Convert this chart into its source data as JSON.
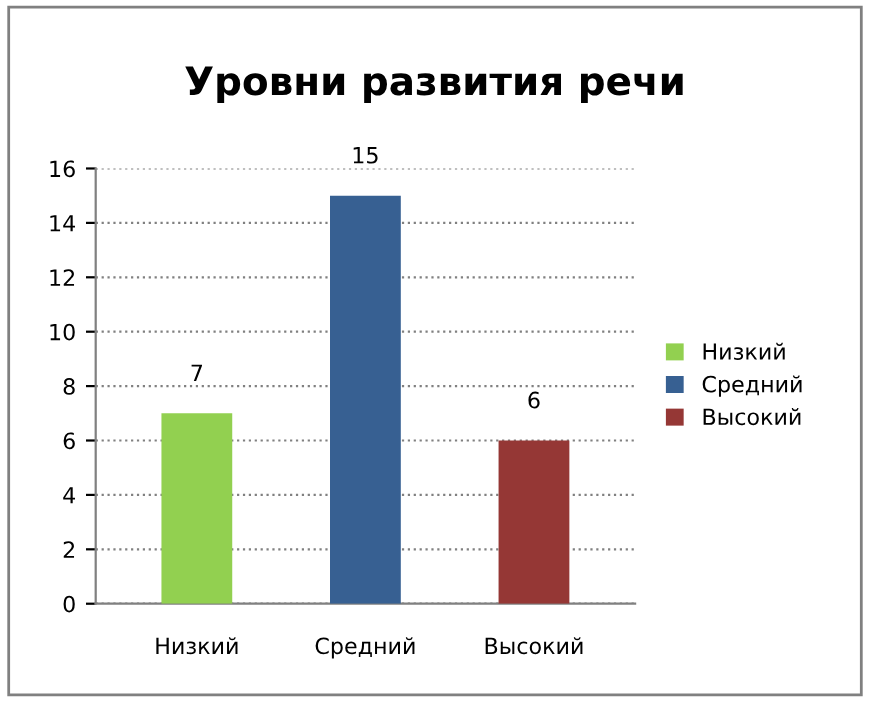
{
  "chart_data": {
    "type": "bar",
    "title": "Уровни развития речи",
    "categories": [
      "Низкий",
      "Средний",
      "Высокий"
    ],
    "series": [
      {
        "name": "Низкий",
        "color": "#92d050",
        "values": [
          7,
          null,
          null
        ]
      },
      {
        "name": "Средний",
        "color": "#376092",
        "values": [
          null,
          15,
          null
        ]
      },
      {
        "name": "Высокий",
        "color": "#953735",
        "values": [
          null,
          null,
          6
        ]
      }
    ],
    "ylim": [
      0,
      16
    ],
    "yticks": [
      0,
      2,
      4,
      6,
      8,
      10,
      12,
      14,
      16
    ],
    "grid": "y",
    "legend": "right",
    "data_labels": true
  }
}
